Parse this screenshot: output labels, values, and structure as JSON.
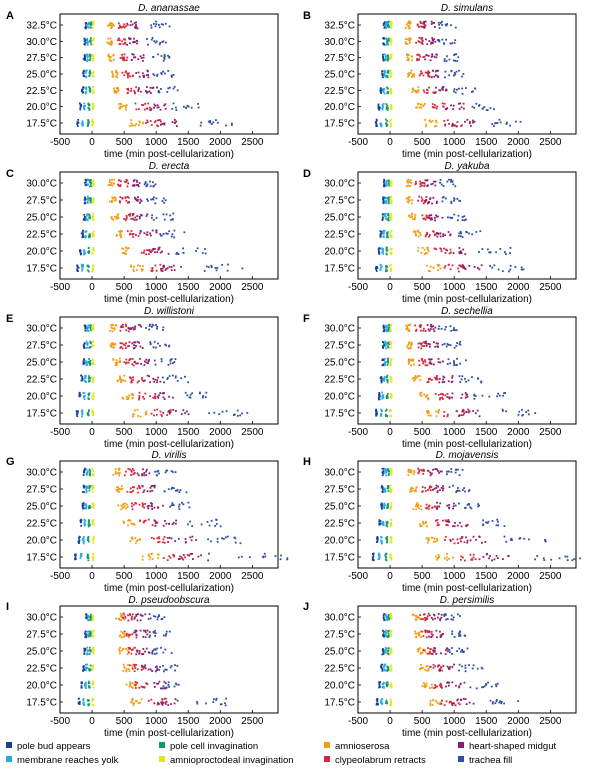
{
  "figure": {
    "xlabel": "time (min post-cellularization)",
    "colors": {
      "pole_bud": "#1c3f94",
      "membrane": "#29abe2",
      "pole_cell": "#0e9a72",
      "amnioproct": "#e6e61e",
      "amnioserosa": "#f39c12",
      "clypeo": "#d7263d",
      "heart": "#8b1e6b",
      "trachea": "#2e4fa3"
    },
    "legend": [
      {
        "key": "pole_bud",
        "label": "pole bud appears"
      },
      {
        "key": "membrane",
        "label": "membrane reaches yolk"
      },
      {
        "key": "pole_cell",
        "label": "pole cell invagination"
      },
      {
        "key": "amnioproct",
        "label": "amnioproctodeal invagination"
      },
      {
        "key": "amnioserosa",
        "label": "amnioserosa"
      },
      {
        "key": "clypeo",
        "label": "clypeolabrum retracts"
      },
      {
        "key": "heart",
        "label": "heart-shaped midgut"
      },
      {
        "key": "trachea",
        "label": "trachea fill"
      }
    ]
  },
  "chart_data": [
    {
      "type": "scatter",
      "panel": "A",
      "title": "D. ananassae",
      "xlim": [
        -500,
        2900
      ],
      "xticks": [
        "-500",
        "0",
        "500",
        "1000",
        "1500",
        "2000",
        "2500"
      ],
      "ylabels": [
        "32.5°C",
        "30.0°C",
        "27.5°C",
        "25.0°C",
        "22.5°C",
        "20.0°C",
        "17.5°C"
      ],
      "stage_times": [
        [
          -100,
          -60,
          -20,
          20,
          300,
          480,
          650,
          1050
        ],
        [
          -110,
          -70,
          -25,
          15,
          280,
          470,
          640,
          1000
        ],
        [
          -120,
          -80,
          -30,
          15,
          300,
          500,
          700,
          1050
        ],
        [
          -130,
          -90,
          -35,
          15,
          350,
          560,
          760,
          1100
        ],
        [
          -150,
          -100,
          -40,
          15,
          400,
          650,
          850,
          1200
        ],
        [
          -180,
          -120,
          -50,
          15,
          500,
          800,
          1000,
          1450
        ],
        [
          -220,
          -150,
          -60,
          10,
          700,
          1000,
          1150,
          1900
        ]
      ]
    },
    {
      "type": "scatter",
      "panel": "B",
      "title": "D. simulans",
      "xlim": [
        -500,
        2900
      ],
      "xticks": [
        "-500",
        "0",
        "500",
        "1000",
        "1500",
        "2000",
        "2500"
      ],
      "ylabels": [
        "32.5°C",
        "30.0°C",
        "27.5°C",
        "25.0°C",
        "22.5°C",
        "20.0°C",
        "17.5°C"
      ],
      "stage_times": [
        [
          -90,
          -55,
          -20,
          20,
          280,
          480,
          620,
          900
        ],
        [
          -100,
          -60,
          -25,
          15,
          280,
          460,
          610,
          880
        ],
        [
          -110,
          -70,
          -30,
          15,
          300,
          480,
          640,
          950
        ],
        [
          -120,
          -80,
          -35,
          15,
          330,
          520,
          700,
          1000
        ],
        [
          -140,
          -95,
          -40,
          15,
          400,
          620,
          820,
          1150
        ],
        [
          -170,
          -110,
          -45,
          15,
          480,
          760,
          1000,
          1500
        ],
        [
          -210,
          -140,
          -55,
          10,
          650,
          980,
          1150,
          1800
        ]
      ]
    },
    {
      "type": "scatter",
      "panel": "C",
      "title": "D. erecta",
      "xlim": [
        -500,
        2900
      ],
      "xticks": [
        "-500",
        "0",
        "500",
        "1000",
        "1500",
        "2000",
        "2500"
      ],
      "ylabels": [
        "30.0°C",
        "27.5°C",
        "25.0°C",
        "22.5°C",
        "20.0°C",
        "17.5°C"
      ],
      "stage_times": [
        [
          -100,
          -60,
          -25,
          15,
          300,
          480,
          650,
          950
        ],
        [
          -110,
          -70,
          -30,
          15,
          320,
          500,
          680,
          1000
        ],
        [
          -120,
          -80,
          -35,
          15,
          360,
          560,
          750,
          1100
        ],
        [
          -150,
          -100,
          -40,
          15,
          430,
          660,
          880,
          1250
        ],
        [
          -180,
          -120,
          -50,
          15,
          520,
          820,
          1050,
          1550
        ],
        [
          -220,
          -150,
          -60,
          10,
          700,
          1050,
          1250,
          2050
        ]
      ]
    },
    {
      "type": "scatter",
      "panel": "D",
      "title": "D. yakuba",
      "xlim": [
        -500,
        2900
      ],
      "xticks": [
        "-500",
        "0",
        "500",
        "1000",
        "1500",
        "2000",
        "2500"
      ],
      "ylabels": [
        "30.0°C",
        "27.5°C",
        "25.0°C",
        "22.5°C",
        "20.0°C",
        "17.5°C"
      ],
      "stage_times": [
        [
          -90,
          -55,
          -20,
          15,
          300,
          470,
          620,
          900
        ],
        [
          -100,
          -65,
          -25,
          15,
          310,
          490,
          650,
          950
        ],
        [
          -110,
          -75,
          -30,
          15,
          340,
          540,
          720,
          1050
        ],
        [
          -140,
          -95,
          -40,
          15,
          420,
          650,
          860,
          1250
        ],
        [
          -170,
          -115,
          -45,
          15,
          520,
          820,
          1050,
          1650
        ],
        [
          -210,
          -140,
          -55,
          10,
          680,
          1000,
          1250,
          1850
        ]
      ]
    },
    {
      "type": "scatter",
      "panel": "E",
      "title": "D. willistoni",
      "xlim": [
        -500,
        2900
      ],
      "xticks": [
        "-500",
        "0",
        "500",
        "1000",
        "1500",
        "2000",
        "2500"
      ],
      "ylabels": [
        "30.0°C",
        "27.5°C",
        "25.0°C",
        "22.5°C",
        "20.0°C",
        "17.5°C"
      ],
      "stage_times": [
        [
          -110,
          -65,
          -25,
          15,
          330,
          500,
          670,
          1000
        ],
        [
          -120,
          -75,
          -30,
          15,
          340,
          520,
          700,
          1050
        ],
        [
          -130,
          -85,
          -35,
          15,
          380,
          580,
          780,
          1150
        ],
        [
          -160,
          -105,
          -40,
          15,
          460,
          700,
          920,
          1300
        ],
        [
          -190,
          -125,
          -50,
          15,
          560,
          860,
          1100,
          1600
        ],
        [
          -230,
          -155,
          -60,
          10,
          750,
          1100,
          1300,
          2150
        ]
      ]
    },
    {
      "type": "scatter",
      "panel": "F",
      "title": "D. sechellia",
      "xlim": [
        -500,
        2900
      ],
      "xticks": [
        "-500",
        "0",
        "500",
        "1000",
        "1500",
        "2000",
        "2500"
      ],
      "ylabels": [
        "30.0°C",
        "27.5°C",
        "25.0°C",
        "22.5°C",
        "20.0°C",
        "17.5°C"
      ],
      "stage_times": [
        [
          -90,
          -55,
          -20,
          15,
          280,
          460,
          620,
          900
        ],
        [
          -100,
          -65,
          -25,
          15,
          300,
          480,
          650,
          950
        ],
        [
          -110,
          -75,
          -30,
          15,
          340,
          540,
          720,
          1050
        ],
        [
          -140,
          -95,
          -40,
          15,
          420,
          660,
          860,
          1250
        ],
        [
          -170,
          -115,
          -45,
          15,
          520,
          820,
          1050,
          1550
        ],
        [
          -210,
          -140,
          -55,
          10,
          680,
          1000,
          1250,
          2000
        ]
      ]
    },
    {
      "type": "scatter",
      "panel": "G",
      "title": "D. virilis",
      "xlim": [
        -500,
        2900
      ],
      "xticks": [
        "-500",
        "0",
        "500",
        "1000",
        "1500",
        "2000",
        "2500"
      ],
      "ylabels": [
        "30.0°C",
        "27.5°C",
        "25.0°C",
        "22.5°C",
        "20.0°C",
        "17.5°C"
      ],
      "stage_times": [
        [
          -120,
          -75,
          -30,
          15,
          380,
          600,
          820,
          1150
        ],
        [
          -130,
          -85,
          -35,
          15,
          420,
          650,
          870,
          1300
        ],
        [
          -140,
          -95,
          -40,
          15,
          480,
          730,
          980,
          1450
        ],
        [
          -170,
          -115,
          -45,
          15,
          580,
          880,
          1150,
          1750
        ],
        [
          -200,
          -135,
          -55,
          15,
          700,
          1100,
          1400,
          2100
        ],
        [
          -260,
          -170,
          -65,
          10,
          900,
          1300,
          1600,
          2700
        ]
      ]
    },
    {
      "type": "scatter",
      "panel": "H",
      "title": "D. mojavensis",
      "xlim": [
        -500,
        2900
      ],
      "xticks": [
        "-500",
        "0",
        "500",
        "1000",
        "1500",
        "2000",
        "2500"
      ],
      "ylabels": [
        "30.0°C",
        "27.5°C",
        "25.0°C",
        "22.5°C",
        "20.0°C",
        "17.5°C"
      ],
      "stage_times": [
        [
          -110,
          -70,
          -28,
          15,
          330,
          520,
          700,
          1000
        ],
        [
          -120,
          -80,
          -32,
          15,
          360,
          560,
          760,
          1080
        ],
        [
          -130,
          -90,
          -38,
          15,
          420,
          640,
          860,
          1200
        ],
        [
          -160,
          -110,
          -45,
          15,
          520,
          800,
          1060,
          1600
        ],
        [
          -200,
          -135,
          -55,
          15,
          650,
          1000,
          1300,
          2100
        ],
        [
          -260,
          -170,
          -65,
          10,
          850,
          1300,
          1700,
          2650
        ]
      ]
    },
    {
      "type": "scatter",
      "panel": "I",
      "title": "D. pseudoobscura",
      "xlim": [
        -500,
        2900
      ],
      "xticks": [
        "-500",
        "0",
        "500",
        "1000",
        "1500",
        "2000",
        "2500"
      ],
      "ylabels": [
        "30.0°C",
        "27.5°C",
        "25.0°C",
        "22.5°C",
        "20.0°C",
        "17.5°C"
      ],
      "stage_times": [
        [
          -90,
          -55,
          -20,
          15,
          450,
          550,
          720,
          1000
        ],
        [
          -100,
          -60,
          -25,
          15,
          500,
          600,
          780,
          1050
        ],
        [
          -110,
          -70,
          -30,
          15,
          500,
          650,
          820,
          1100
        ],
        [
          -130,
          -85,
          -35,
          15,
          550,
          700,
          880,
          1150
        ],
        [
          -160,
          -105,
          -45,
          15,
          600,
          800,
          1000,
          1300
        ],
        [
          -200,
          -130,
          -55,
          10,
          700,
          1000,
          1150,
          1900
        ]
      ]
    },
    {
      "type": "scatter",
      "panel": "J",
      "title": "D. persimilis",
      "xlim": [
        -500,
        2900
      ],
      "xticks": [
        "-500",
        "0",
        "500",
        "1000",
        "1500",
        "2000",
        "2500"
      ],
      "ylabels": [
        "30.0°C",
        "27.5°C",
        "25.0°C",
        "22.5°C",
        "20.0°C",
        "17.5°C"
      ],
      "stage_times": [
        [
          -90,
          -55,
          -20,
          15,
          400,
          550,
          700,
          1000
        ],
        [
          -100,
          -60,
          -25,
          15,
          450,
          580,
          720,
          1050
        ],
        [
          -110,
          -70,
          -30,
          15,
          480,
          620,
          780,
          1100
        ],
        [
          -130,
          -85,
          -35,
          15,
          520,
          700,
          880,
          1250
        ],
        [
          -160,
          -105,
          -45,
          15,
          600,
          800,
          1000,
          1450
        ],
        [
          -200,
          -130,
          -55,
          10,
          700,
          950,
          1150,
          1800
        ]
      ]
    }
  ]
}
